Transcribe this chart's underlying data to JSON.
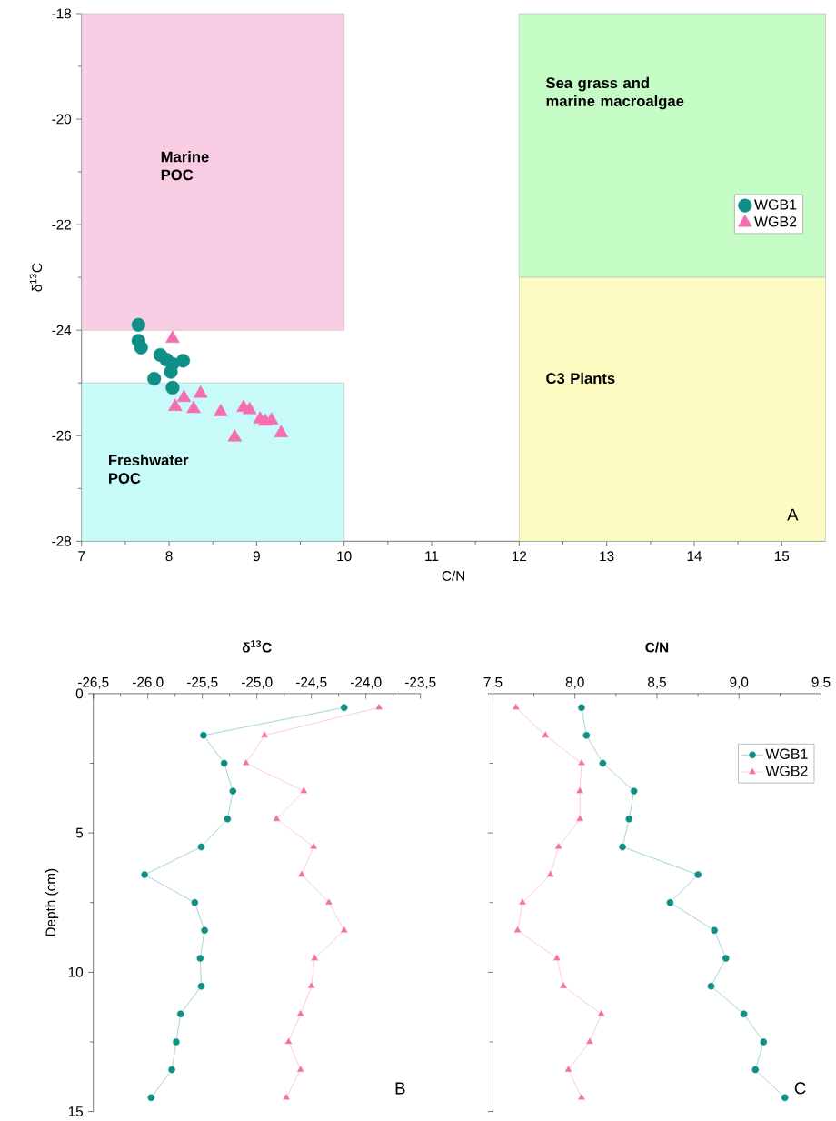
{
  "chart_data": [
    {
      "type": "scatter",
      "xlabel": "C/N",
      "ylabel": "δ$^{13}$C",
      "xlim": [
        7,
        15.5
      ],
      "ylim": [
        -28,
        -18
      ],
      "xticks": [
        7,
        8,
        9,
        10,
        11,
        12,
        13,
        14,
        15
      ],
      "yticks": [
        -28,
        -26,
        -24,
        -22,
        -20,
        -18
      ],
      "legend": "right",
      "annotations": [
        "A"
      ],
      "series": [
        {
          "type": "bar",
          "name": "Marine POC",
          "color": "#f9cde4",
          "x": [
            8.5
          ],
          "base": [
            -24
          ],
          "values": [
            6
          ]
        },
        {
          "type": "bar",
          "name": "Freshwater POC",
          "color": "#c8fafa",
          "x": [
            8.5
          ],
          "base": [
            -28
          ],
          "values": [
            3
          ]
        },
        {
          "type": "bar",
          "name": "Sea grass and marine macroalgae",
          "color": "#c5fcc6",
          "x": [
            13.75
          ],
          "base": [
            -23
          ],
          "values": [
            5
          ]
        },
        {
          "type": "bar",
          "name": "C3 Plants",
          "color": "#fcfcc2",
          "x": [
            13.75
          ],
          "base": [
            -28
          ],
          "values": [
            5
          ]
        },
        {
          "name": "WGB1",
          "color": "#108f87",
          "marker": "circle",
          "x": [
            7.65,
            7.65,
            7.68,
            7.85,
            7.9,
            7.97,
            8.04,
            8.16,
            8.02,
            7.83,
            8.04
          ],
          "values": [
            -23.9,
            -24.2,
            -24.33,
            null,
            -24.47,
            -24.56,
            -24.64,
            -24.58,
            -24.79,
            -24.92,
            -25.09
          ]
        },
        {
          "name": "WGB2",
          "color": "#f36fae",
          "marker": "triangle",
          "x": [
            8.04,
            8.17,
            8.36,
            8.07,
            8.28,
            8.59,
            8.85,
            8.92,
            9.04,
            9.1,
            9.17,
            9.28,
            8.75
          ],
          "values": [
            -24.16,
            -25.28,
            -25.2,
            -25.45,
            -25.49,
            -25.55,
            -25.47,
            -25.51,
            -25.69,
            -25.73,
            -25.71,
            -25.95,
            -26.03
          ]
        }
      ]
    },
    {
      "type": "line",
      "orientation": "horizontal",
      "title": "**δ$^{13}$C**",
      "ylabel": "Depth (cm)",
      "xlim": [
        -26.5,
        -23.5
      ],
      "xticks": [
        {
          "value": -26.5,
          "label": "-26,5"
        },
        {
          "value": -26,
          "label": "-26,0"
        },
        {
          "value": -25.5,
          "label": "-25,5"
        },
        {
          "value": -25,
          "label": "-25,0"
        },
        {
          "value": -24.5,
          "label": "-24,5"
        },
        {
          "value": -24,
          "label": "-24,0"
        },
        {
          "value": -23.5,
          "label": "-23,5"
        }
      ],
      "ylim": [
        15,
        0
      ],
      "yticks": [
        0,
        5,
        10,
        15
      ],
      "annotations": [
        "B"
      ],
      "x": [
        0.5,
        1.5,
        2.5,
        3.5,
        4.5,
        5.5,
        6.5,
        7.5,
        8.5,
        9.5,
        10.5,
        11.5,
        12.5,
        13.5,
        14.5
      ],
      "series": [
        {
          "color": "#108f87",
          "marker": "circle",
          "values": [
            -24.2,
            -25.49,
            -25.3,
            -25.22,
            -25.27,
            -25.51,
            -26.03,
            -25.57,
            -25.48,
            -25.52,
            -25.51,
            -25.7,
            -25.74,
            -25.78,
            -25.97
          ]
        },
        {
          "color": "#f36fae",
          "marker": "triangle",
          "values": [
            -23.88,
            -24.93,
            -25.1,
            -24.57,
            -24.82,
            -24.48,
            -24.59,
            -24.34,
            -24.2,
            -24.47,
            -24.5,
            -24.6,
            -24.71,
            -24.6,
            -24.73
          ]
        }
      ]
    },
    {
      "type": "line",
      "orientation": "horizontal",
      "title": "**C/N**",
      "xlim": [
        7.5,
        9.5
      ],
      "xticks": [
        {
          "value": 7.5,
          "label": "7,5"
        },
        {
          "value": 8,
          "label": "8,0"
        },
        {
          "value": 8.5,
          "label": "8,5"
        },
        {
          "value": 9,
          "label": "9,0"
        },
        {
          "value": 9.5,
          "label": "9,5"
        }
      ],
      "ylim": [
        15,
        0
      ],
      "yticks": [
        0,
        5,
        10,
        15
      ],
      "tick_labels": "x",
      "legend": "top right",
      "annotations": [
        "C"
      ],
      "x": [
        0.5,
        1.5,
        2.5,
        3.5,
        4.5,
        5.5,
        6.5,
        7.5,
        8.5,
        9.5,
        10.5,
        11.5,
        12.5,
        13.5,
        14.5
      ],
      "series": [
        {
          "name": "WGB1",
          "color": "#108f87",
          "marker": "circle",
          "values": [
            8.04,
            8.07,
            8.17,
            8.36,
            8.33,
            8.29,
            8.75,
            8.58,
            8.85,
            8.92,
            8.83,
            9.03,
            9.15,
            9.1,
            9.28
          ]
        },
        {
          "name": "WGB2",
          "color": "#f36fae",
          "marker": "triangle",
          "values": [
            7.64,
            7.82,
            8.04,
            8.03,
            8.03,
            7.9,
            7.85,
            7.68,
            7.65,
            7.89,
            7.93,
            8.16,
            8.09,
            7.96,
            8.04
          ]
        }
      ]
    }
  ]
}
